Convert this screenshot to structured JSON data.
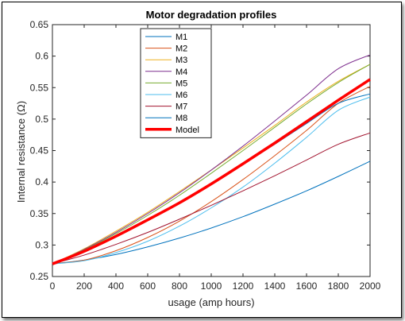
{
  "chart_data": {
    "type": "line",
    "title": "Motor degradation profiles",
    "xlabel": "usage (amp hours)",
    "ylabel": "Internal resistance (Ω)",
    "xlim": [
      0,
      2000
    ],
    "ylim": [
      0.25,
      0.65
    ],
    "xticks": [
      0,
      200,
      400,
      600,
      800,
      1000,
      1200,
      1400,
      1600,
      1800,
      2000
    ],
    "yticks": [
      0.25,
      0.3,
      0.35,
      0.4,
      0.45,
      0.5,
      0.55,
      0.6,
      0.65
    ],
    "grid": false,
    "legend_position": "upper-left",
    "x": [
      0,
      200,
      400,
      600,
      800,
      1000,
      1200,
      1400,
      1600,
      1800,
      2000
    ],
    "series": [
      {
        "name": "M1",
        "color": "#0072bd",
        "width": 1,
        "values": [
          0.27,
          0.276,
          0.285,
          0.297,
          0.311,
          0.327,
          0.345,
          0.365,
          0.386,
          0.409,
          0.433
        ]
      },
      {
        "name": "M2",
        "color": "#d95319",
        "width": 1,
        "values": [
          0.27,
          0.276,
          0.291,
          0.312,
          0.338,
          0.369,
          0.404,
          0.442,
          0.482,
          0.525,
          0.552
        ]
      },
      {
        "name": "M3",
        "color": "#edb120",
        "width": 1,
        "values": [
          0.27,
          0.294,
          0.322,
          0.352,
          0.385,
          0.419,
          0.454,
          0.49,
          0.527,
          0.56,
          0.587
        ]
      },
      {
        "name": "M4",
        "color": "#7e2f8e",
        "width": 1,
        "values": [
          0.27,
          0.293,
          0.32,
          0.35,
          0.383,
          0.419,
          0.457,
          0.497,
          0.538,
          0.58,
          0.602
        ]
      },
      {
        "name": "M5",
        "color": "#77ac30",
        "width": 1,
        "values": [
          0.27,
          0.292,
          0.318,
          0.347,
          0.379,
          0.414,
          0.45,
          0.487,
          0.524,
          0.558,
          0.587
        ]
      },
      {
        "name": "M6",
        "color": "#4dbeee",
        "width": 1,
        "values": [
          0.27,
          0.275,
          0.288,
          0.306,
          0.33,
          0.359,
          0.392,
          0.43,
          0.471,
          0.514,
          0.535
        ]
      },
      {
        "name": "M7",
        "color": "#a2142f",
        "width": 1,
        "values": [
          0.27,
          0.284,
          0.301,
          0.32,
          0.341,
          0.363,
          0.386,
          0.41,
          0.435,
          0.46,
          0.478
        ]
      },
      {
        "name": "M8",
        "color": "#0072bd",
        "width": 1,
        "values": [
          0.27,
          0.291,
          0.314,
          0.34,
          0.368,
          0.397,
          0.428,
          0.46,
          0.493,
          0.525,
          0.54
        ]
      },
      {
        "name": "Model",
        "color": "#ff0000",
        "width": 3.5,
        "values": [
          0.27,
          0.29,
          0.314,
          0.34,
          0.367,
          0.397,
          0.429,
          0.462,
          0.496,
          0.53,
          0.563
        ]
      }
    ]
  }
}
